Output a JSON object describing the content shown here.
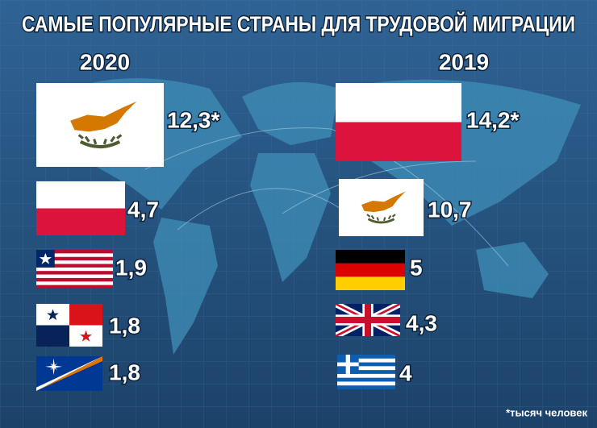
{
  "title": "САМЫЕ ПОПУЛЯРНЫЕ СТРАНЫ ДЛЯ ТРУДОВОЙ МИГРАЦИИ",
  "columns": [
    {
      "year": "2020",
      "items": [
        "12,3*",
        "4,7",
        "1,9",
        "1,8",
        "1,8"
      ]
    },
    {
      "year": "2019",
      "items": [
        "14,2*",
        "10,7",
        "5",
        "4,3",
        "4"
      ]
    }
  ],
  "footnote": "*тысяч человек"
}
